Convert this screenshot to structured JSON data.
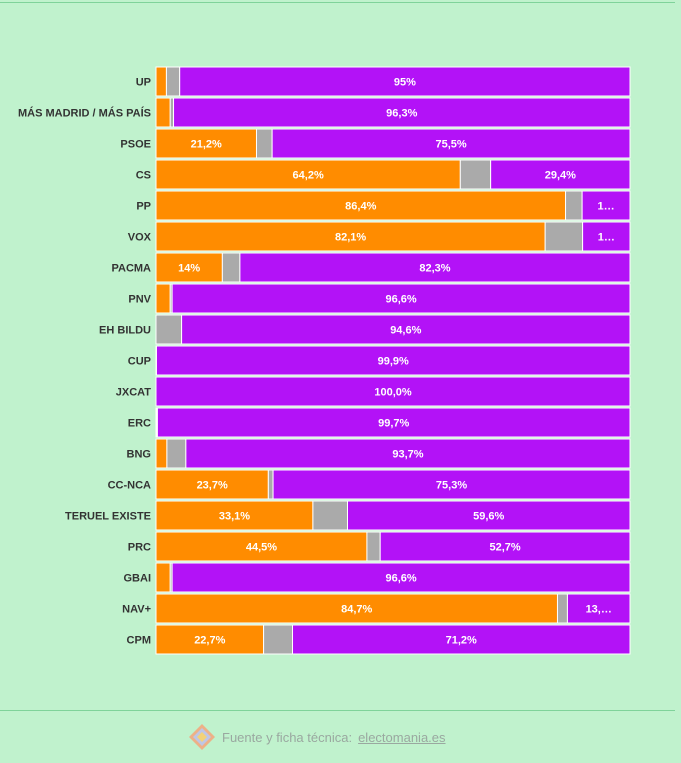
{
  "chart_data": {
    "type": "bar",
    "stacked": true,
    "orientation": "horizontal",
    "categories": [
      "UP",
      "MÁS MADRID / MÁS PAÍS",
      "PSOE",
      "CS",
      "PP",
      "VOX",
      "PACMA",
      "PNV",
      "EH BILDU",
      "CUP",
      "JXCAT",
      "ERC",
      "BNG",
      "CC-NCA",
      "TERUEL EXISTE",
      "PRC",
      "GBAI",
      "NAV+",
      "CPM"
    ],
    "series": [
      {
        "values": [
          2.2,
          3.0,
          21.2,
          64.2,
          86.4,
          82.1,
          14.0,
          3.0,
          0.0,
          0.0,
          0.0,
          0.1,
          2.3,
          23.7,
          33.1,
          44.5,
          3.0,
          84.7,
          22.7
        ],
        "labels": [
          "",
          "",
          "21,2%",
          "64,2%",
          "86,4%",
          "82,1%",
          "14%",
          "",
          "",
          "",
          "",
          "",
          "",
          "23,7%",
          "33,1%",
          "44,5%",
          "",
          "84,7%",
          "22,7%"
        ]
      },
      {
        "values": [
          2.8,
          0.7,
          3.3,
          6.4,
          3.5,
          7.9,
          3.7,
          0.4,
          5.4,
          0.1,
          0.0,
          0.2,
          4.0,
          1.0,
          7.3,
          2.8,
          0.4,
          2.1,
          6.1
        ],
        "labels": [
          "",
          "",
          "",
          "",
          "",
          "",
          "",
          "",
          "",
          "",
          "",
          "",
          "",
          "",
          "",
          "",
          "",
          "",
          ""
        ]
      },
      {
        "values": [
          95.0,
          96.3,
          75.5,
          29.4,
          10.1,
          10.0,
          82.3,
          96.6,
          94.6,
          99.9,
          100.0,
          99.7,
          93.7,
          75.3,
          59.6,
          52.7,
          96.6,
          13.2,
          71.2
        ],
        "labels": [
          "95%",
          "96,3%",
          "75,5%",
          "29,4%",
          "1…",
          "1…",
          "82,3%",
          "96,6%",
          "94,6%",
          "99,9%",
          "100,0%",
          "99,7%",
          "93,7%",
          "75,3%",
          "59,6%",
          "52,7%",
          "96,6%",
          "13,…",
          "71,2%"
        ]
      }
    ],
    "colors": [
      "#ff8c00",
      "#aaaaaa",
      "#b312f7"
    ],
    "xlim": [
      0,
      100
    ],
    "legend": "none",
    "grid": false
  },
  "footer": {
    "source_text": "Fuente y ficha técnica:",
    "source_link": "electomania.es",
    "logo_icon": "electomania-logo-icon"
  }
}
